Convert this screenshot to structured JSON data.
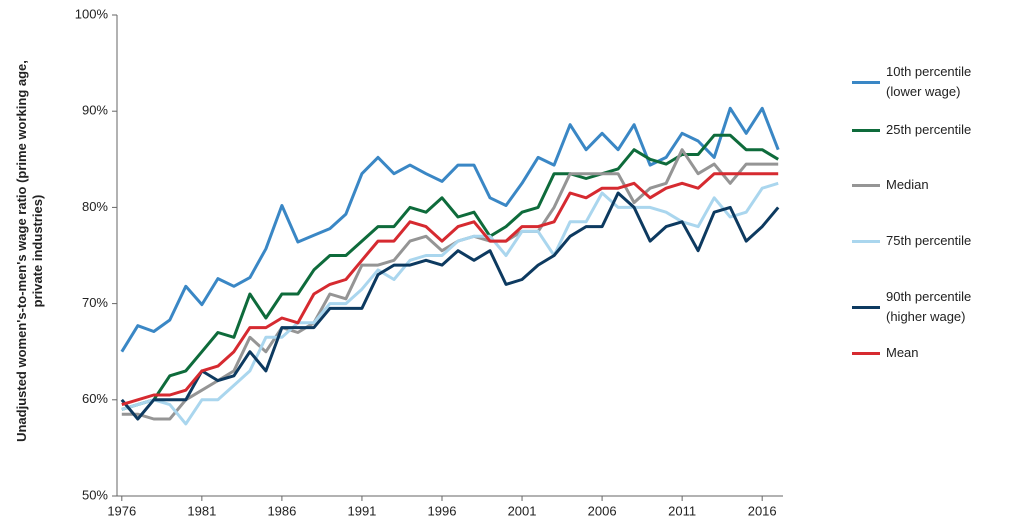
{
  "chart_data": {
    "type": "line",
    "y_label": "Unadjusted women's-to-men's wage ratio (prime working age, private industries)",
    "x": [
      1976,
      1977,
      1978,
      1979,
      1980,
      1981,
      1982,
      1983,
      1984,
      1985,
      1986,
      1987,
      1988,
      1989,
      1990,
      1991,
      1992,
      1993,
      1994,
      1995,
      1996,
      1997,
      1998,
      1999,
      2000,
      2001,
      2002,
      2003,
      2004,
      2005,
      2006,
      2007,
      2008,
      2009,
      2010,
      2011,
      2012,
      2013,
      2014,
      2015,
      2016,
      2017
    ],
    "xlim": [
      1975.7,
      2017.3
    ],
    "xticks": [
      1976,
      1981,
      1986,
      1991,
      1996,
      2001,
      2006,
      2011,
      2016
    ],
    "ylim": [
      50,
      100
    ],
    "yticks": [
      {
        "value": 50,
        "label": "50%"
      },
      {
        "value": 60,
        "label": "60%"
      },
      {
        "value": 70,
        "label": "70%"
      },
      {
        "value": 80,
        "label": "80%"
      },
      {
        "value": 90,
        "label": "90%"
      },
      {
        "value": 100,
        "label": "100%"
      }
    ],
    "grid": false,
    "legend": "right",
    "series": [
      {
        "name": "10th percentile (lower wage)",
        "color": "#3a87c5",
        "values": [
          65.0,
          67.7,
          67.1,
          68.3,
          71.8,
          69.9,
          72.6,
          71.8,
          72.7,
          75.7,
          80.2,
          76.4,
          77.1,
          77.8,
          79.3,
          83.5,
          85.2,
          83.5,
          84.4,
          83.5,
          82.7,
          84.4,
          84.4,
          81.0,
          80.2,
          82.5,
          85.2,
          84.4,
          88.6,
          86.0,
          87.7,
          86.0,
          88.6,
          84.4,
          85.2,
          87.7,
          86.9,
          85.2,
          90.3,
          87.7,
          90.3,
          86.0
        ]
      },
      {
        "name": "25th percentile",
        "color": "#0e6b3b",
        "values": [
          59.0,
          59.5,
          60.0,
          62.5,
          63.0,
          65.0,
          67.0,
          66.5,
          71.0,
          68.5,
          71.0,
          71.0,
          73.5,
          75.0,
          75.0,
          76.5,
          78.0,
          78.0,
          80.0,
          79.5,
          81.0,
          79.0,
          79.5,
          77.0,
          78.0,
          79.5,
          80.0,
          83.5,
          83.5,
          83.0,
          83.5,
          84.0,
          86.0,
          85.0,
          84.5,
          85.5,
          85.5,
          87.5,
          87.5,
          86.0,
          86.0,
          85.0
        ]
      },
      {
        "name": "Median",
        "color": "#959595",
        "values": [
          58.5,
          58.5,
          58.0,
          58.0,
          60.0,
          61.0,
          62.0,
          63.0,
          66.5,
          65.0,
          67.5,
          67.0,
          68.0,
          71.0,
          70.5,
          74.0,
          74.0,
          74.5,
          76.5,
          77.0,
          75.5,
          76.5,
          77.0,
          76.5,
          76.5,
          77.5,
          77.5,
          80.0,
          83.5,
          83.5,
          83.5,
          83.5,
          80.5,
          82.0,
          82.5,
          86.0,
          83.5,
          84.5,
          82.5,
          84.5,
          84.5,
          84.5
        ]
      },
      {
        "name": "75th percentile",
        "color": "#aad6ee",
        "values": [
          59.0,
          59.5,
          60.0,
          59.5,
          57.5,
          60.0,
          60.0,
          61.5,
          63.0,
          66.5,
          66.5,
          68.0,
          68.0,
          70.0,
          70.0,
          71.5,
          73.5,
          72.5,
          74.5,
          75.0,
          75.0,
          76.5,
          77.0,
          77.0,
          75.0,
          77.5,
          77.5,
          75.0,
          78.5,
          78.5,
          81.5,
          80.0,
          80.0,
          80.0,
          79.5,
          78.5,
          78.0,
          81.0,
          79.0,
          79.5,
          82.0,
          82.5
        ]
      },
      {
        "name": "90th percentile (higher wage)",
        "color": "#0d3a60",
        "values": [
          60.0,
          58.0,
          60.0,
          60.0,
          60.0,
          63.0,
          62.0,
          62.5,
          65.0,
          63.0,
          67.5,
          67.5,
          67.5,
          69.5,
          69.5,
          69.5,
          73.0,
          74.0,
          74.0,
          74.5,
          74.0,
          75.5,
          74.5,
          75.5,
          72.0,
          72.5,
          74.0,
          75.0,
          77.0,
          78.0,
          78.0,
          81.5,
          80.0,
          76.5,
          78.0,
          78.5,
          75.5,
          79.5,
          80.0,
          76.5,
          78.0,
          80.0
        ]
      },
      {
        "name": "Mean",
        "color": "#d62a30",
        "values": [
          59.5,
          60.0,
          60.5,
          60.5,
          61.0,
          63.0,
          63.5,
          65.0,
          67.5,
          67.5,
          68.5,
          68.0,
          71.0,
          72.0,
          72.5,
          74.5,
          76.5,
          76.5,
          78.5,
          78.0,
          76.5,
          78.0,
          78.5,
          76.5,
          76.5,
          78.0,
          78.0,
          78.5,
          81.5,
          81.0,
          82.0,
          82.0,
          82.5,
          81.0,
          82.0,
          82.5,
          82.0,
          83.5,
          83.5,
          83.5,
          83.5,
          83.5
        ]
      }
    ]
  }
}
